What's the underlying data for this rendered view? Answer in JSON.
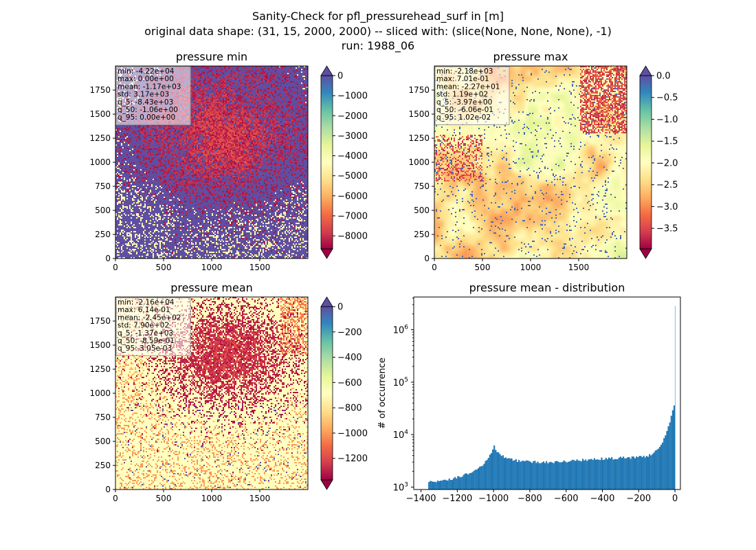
{
  "suptitle": {
    "line1": "Sanity-Check for pfl_pressurehead_surf in [m]",
    "line2": "original data shape: (31, 15, 2000, 2000) -- sliced with: (slice(None, None, None), -1)",
    "line3": "run: 1988_06"
  },
  "chart_data": [
    {
      "type": "heatmap",
      "title": "pressure min",
      "colormap": "Spectral",
      "xticks": [
        "0",
        "500",
        "1000",
        "1500"
      ],
      "yticks": [
        "0",
        "250",
        "500",
        "750",
        "1000",
        "1250",
        "1500",
        "1750"
      ],
      "xlim": [
        0,
        2000
      ],
      "ylim": [
        0,
        2000
      ],
      "colorbar": {
        "min": -8650,
        "max": 0,
        "ticks": [
          {
            "v": 0,
            "label": "0"
          },
          {
            "v": -1000,
            "label": "−1000"
          },
          {
            "v": -2000,
            "label": "−2000"
          },
          {
            "v": -3000,
            "label": "−3000"
          },
          {
            "v": -4000,
            "label": "−4000"
          },
          {
            "v": -5000,
            "label": "−5000"
          },
          {
            "v": -6000,
            "label": "−6000"
          },
          {
            "v": -7000,
            "label": "−7000"
          },
          {
            "v": -8000,
            "label": "−8000"
          }
        ],
        "extend_top_color": "#5e4fa2",
        "extend_bottom_color": "#9e0142"
      },
      "stats": [
        "min: -4.22e+04",
        "max: 0.00e+00",
        "mean: -1.17e+03",
        "std: 3.17e+03",
        "q_5: -8.43e+03",
        "q_50: -1.06e+00",
        "q_95: 0.00e+00"
      ]
    },
    {
      "type": "heatmap",
      "title": "pressure max",
      "colormap": "Spectral",
      "xticks": [
        "0",
        "500",
        "1000",
        "1500"
      ],
      "yticks": [
        "0",
        "250",
        "500",
        "750",
        "1000",
        "1250",
        "1500",
        "1750"
      ],
      "xlim": [
        0,
        2000
      ],
      "ylim": [
        0,
        2000
      ],
      "colorbar": {
        "min": -3.97,
        "max": 0,
        "ticks": [
          {
            "v": 0,
            "label": "0.0"
          },
          {
            "v": -0.5,
            "label": "−0.5"
          },
          {
            "v": -1.0,
            "label": "−1.0"
          },
          {
            "v": -1.5,
            "label": "−1.5"
          },
          {
            "v": -2.0,
            "label": "−2.0"
          },
          {
            "v": -2.5,
            "label": "−2.5"
          },
          {
            "v": -3.0,
            "label": "−3.0"
          },
          {
            "v": -3.5,
            "label": "−3.5"
          }
        ],
        "extend_top_color": "#5e4fa2",
        "extend_bottom_color": "#9e0142"
      },
      "stats": [
        "min: -2.18e+03",
        "max: 7.01e-01",
        "mean: -2.27e+01",
        "std: 1.19e+02",
        "q_5: -3.97e+00",
        "q_50: -6.06e-01",
        "q_95: 1.02e-02"
      ]
    },
    {
      "type": "heatmap",
      "title": "pressure mean",
      "colormap": "Spectral",
      "xticks": [
        "0",
        "500",
        "1000",
        "1500"
      ],
      "yticks": [
        "0",
        "250",
        "500",
        "750",
        "1000",
        "1250",
        "1500",
        "1750"
      ],
      "xlim": [
        0,
        2000
      ],
      "ylim": [
        0,
        2000
      ],
      "colorbar": {
        "min": -1370,
        "max": 0,
        "ticks": [
          {
            "v": 0,
            "label": "0"
          },
          {
            "v": -200,
            "label": "−200"
          },
          {
            "v": -400,
            "label": "−400"
          },
          {
            "v": -600,
            "label": "−600"
          },
          {
            "v": -800,
            "label": "−800"
          },
          {
            "v": -1000,
            "label": "−1000"
          },
          {
            "v": -1200,
            "label": "−1200"
          }
        ],
        "extend_top_color": "#5e4fa2",
        "extend_bottom_color": "#9e0142"
      },
      "stats": [
        "min: -2.16e+04",
        "max: 6.14e-01",
        "mean: -2.45e+02",
        "std: 7.90e+02",
        "q_5: -1.37e+03",
        "q_50: -8.59e-01",
        "q_95: 3.05e-03"
      ]
    },
    {
      "type": "bar",
      "title": "pressure mean - distribution",
      "ylabel": "# of occurrence",
      "xlabel": "",
      "yscale": "log",
      "xlim": [
        -1440,
        30
      ],
      "ylim": [
        900,
        4200000
      ],
      "xticks": [
        {
          "v": -1400,
          "label": "−1400"
        },
        {
          "v": -1200,
          "label": "−1200"
        },
        {
          "v": -1000,
          "label": "−1000"
        },
        {
          "v": -800,
          "label": "−800"
        },
        {
          "v": -600,
          "label": "−600"
        },
        {
          "v": -400,
          "label": "−400"
        },
        {
          "v": -200,
          "label": "−200"
        },
        {
          "v": 0,
          "label": "0"
        }
      ],
      "yticks": [
        {
          "v": 1000,
          "base": "10",
          "exp": "3"
        },
        {
          "v": 10000,
          "base": "10",
          "exp": "4"
        },
        {
          "v": 100000,
          "base": "10",
          "exp": "5"
        },
        {
          "v": 1000000,
          "base": "10",
          "exp": "6"
        }
      ],
      "color": "#1f77b4",
      "x": [
        -1360,
        -1300,
        -1250,
        -1200,
        -1150,
        -1100,
        -1060,
        -1030,
        -1010,
        -1000,
        -990,
        -970,
        -950,
        -920,
        -900,
        -850,
        -800,
        -700,
        -600,
        -500,
        -400,
        -300,
        -200,
        -150,
        -100,
        -80,
        -60,
        -40,
        -20,
        -10,
        -5,
        -2,
        0
      ],
      "values": [
        1250,
        1300,
        1400,
        1550,
        1800,
        2100,
        2700,
        3600,
        4800,
        6000,
        5000,
        4200,
        3800,
        3500,
        3300,
        3100,
        3000,
        3000,
        3100,
        3300,
        3500,
        3600,
        3700,
        4000,
        5000,
        6500,
        9000,
        14000,
        25000,
        42000,
        30000,
        180000,
        2700000
      ]
    }
  ]
}
